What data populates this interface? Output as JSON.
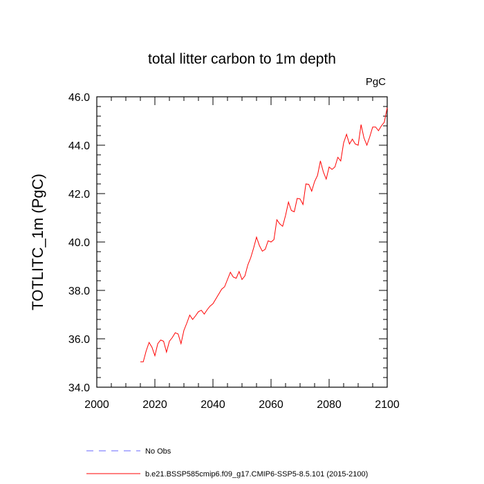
{
  "chart_data": {
    "type": "line",
    "title": "total litter carbon to 1m depth",
    "units_label": "PgC",
    "ylabel": "TOTLITC_1m  (PgC)",
    "xlabel": "",
    "xlim": [
      2000,
      2100
    ],
    "ylim": [
      34.0,
      46.0
    ],
    "x_ticks": [
      2000,
      2020,
      2040,
      2060,
      2080,
      2100
    ],
    "x_tick_labels": [
      "2000",
      "2020",
      "2040",
      "2060",
      "2080",
      "2100"
    ],
    "y_ticks": [
      34.0,
      36.0,
      38.0,
      40.0,
      42.0,
      44.0,
      46.0
    ],
    "y_tick_labels": [
      "34.0",
      "36.0",
      "38.0",
      "40.0",
      "42.0",
      "44.0",
      "46.0"
    ],
    "grid": false,
    "legend_position": "bottom",
    "series": [
      {
        "name": "No Obs",
        "color": "#6666ff",
        "dash": "dashed",
        "x": [],
        "values": []
      },
      {
        "name": "b.e21.BSSP585cmip6.f09_g17.CMIP6-SSP5-8.5.101 (2015-2100)",
        "color": "#ff0000",
        "dash": "solid",
        "x": [
          2015,
          2016,
          2017,
          2018,
          2019,
          2020,
          2021,
          2022,
          2023,
          2024,
          2025,
          2026,
          2027,
          2028,
          2029,
          2030,
          2031,
          2032,
          2033,
          2034,
          2035,
          2036,
          2037,
          2038,
          2039,
          2040,
          2041,
          2042,
          2043,
          2044,
          2045,
          2046,
          2047,
          2048,
          2049,
          2050,
          2051,
          2052,
          2053,
          2054,
          2055,
          2056,
          2057,
          2058,
          2059,
          2060,
          2061,
          2062,
          2063,
          2064,
          2065,
          2066,
          2067,
          2068,
          2069,
          2070,
          2071,
          2072,
          2073,
          2074,
          2075,
          2076,
          2077,
          2078,
          2079,
          2080,
          2081,
          2082,
          2083,
          2084,
          2085,
          2086,
          2087,
          2088,
          2089,
          2090,
          2091,
          2092,
          2093,
          2094,
          2095,
          2096,
          2097,
          2098,
          2099,
          2100
        ],
        "values": [
          35.05,
          35.05,
          35.5,
          35.85,
          35.65,
          35.3,
          35.8,
          35.95,
          35.9,
          35.45,
          35.9,
          36.05,
          36.25,
          36.2,
          35.8,
          36.35,
          36.65,
          36.98,
          36.8,
          36.95,
          37.12,
          37.18,
          37.02,
          37.2,
          37.35,
          37.45,
          37.65,
          37.85,
          38.05,
          38.15,
          38.45,
          38.75,
          38.55,
          38.5,
          38.78,
          38.45,
          38.6,
          39.05,
          39.35,
          39.75,
          40.2,
          39.85,
          39.62,
          39.7,
          40.05,
          40.0,
          40.1,
          40.92,
          40.75,
          40.65,
          41.1,
          41.65,
          41.3,
          41.25,
          41.8,
          41.78,
          41.55,
          42.4,
          42.38,
          42.1,
          42.5,
          42.75,
          43.35,
          42.9,
          42.6,
          43.1,
          43.0,
          43.1,
          43.5,
          43.35,
          44.1,
          44.45,
          44.05,
          44.25,
          44.05,
          44.0,
          44.85,
          44.3,
          44.0,
          44.35,
          44.75,
          44.75,
          44.6,
          44.8,
          44.95,
          45.55
        ]
      }
    ]
  }
}
